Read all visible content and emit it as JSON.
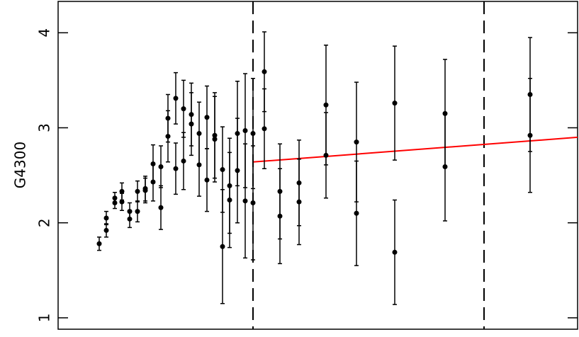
{
  "chart_data": {
    "type": "scatter",
    "y_label": "G4300",
    "xlim": [
      0,
      7.33
    ],
    "ylim": [
      0.88,
      4.33
    ],
    "yticks": [
      1,
      2,
      3,
      4
    ],
    "series": [
      {
        "color": "#000000",
        "x": [
          0.58,
          0.68,
          0.68,
          0.8,
          0.8,
          0.9,
          0.9,
          1.01,
          1.01,
          1.12,
          1.12,
          1.23,
          1.23,
          1.34,
          1.34,
          1.45,
          1.45,
          1.55,
          1.55,
          1.66,
          1.66,
          1.77,
          1.77,
          1.88,
          1.88,
          1.99,
          1.99,
          2.1,
          2.1,
          2.21,
          2.21,
          2.32,
          2.32,
          2.42,
          2.42,
          2.53,
          2.53,
          2.64,
          2.64,
          2.75,
          2.75,
          2.91,
          2.91,
          3.13,
          3.13,
          3.4,
          3.4,
          3.78,
          3.78,
          4.21,
          4.21,
          4.75,
          4.75,
          5.46,
          5.46,
          6.66,
          6.66
        ],
        "values": [
          1.78,
          1.92,
          2.05,
          2.26,
          2.21,
          2.33,
          2.22,
          2.12,
          2.04,
          2.33,
          2.12,
          2.36,
          2.34,
          2.62,
          2.43,
          2.59,
          2.16,
          2.91,
          3.1,
          3.31,
          2.57,
          3.2,
          2.65,
          3.14,
          3.04,
          2.94,
          2.61,
          3.11,
          2.45,
          2.92,
          2.88,
          2.56,
          1.75,
          2.39,
          2.24,
          2.94,
          2.55,
          2.97,
          2.23,
          2.94,
          2.21,
          3.59,
          2.99,
          2.33,
          2.07,
          2.42,
          2.22,
          3.24,
          2.71,
          2.85,
          2.1,
          3.26,
          1.69,
          3.15,
          2.59,
          3.35,
          2.92
        ],
        "errors": [
          0.07,
          0.07,
          0.07,
          0.06,
          0.06,
          0.09,
          0.09,
          0.09,
          0.09,
          0.11,
          0.11,
          0.13,
          0.13,
          0.2,
          0.2,
          0.22,
          0.23,
          0.27,
          0.25,
          0.27,
          0.27,
          0.3,
          0.3,
          0.33,
          0.33,
          0.33,
          0.33,
          0.33,
          0.33,
          0.45,
          0.45,
          0.45,
          0.6,
          0.5,
          0.5,
          0.55,
          0.55,
          0.6,
          0.6,
          0.58,
          0.6,
          0.42,
          0.42,
          0.5,
          0.5,
          0.45,
          0.45,
          0.63,
          0.45,
          0.63,
          0.55,
          0.6,
          0.55,
          0.57,
          0.57,
          0.6,
          0.6
        ]
      }
    ],
    "vlines": [
      2.75,
      6.01
    ],
    "fit": {
      "color": "#ff0000",
      "x": [
        2.75,
        7.33
      ],
      "y": [
        2.64,
        2.9
      ]
    }
  }
}
